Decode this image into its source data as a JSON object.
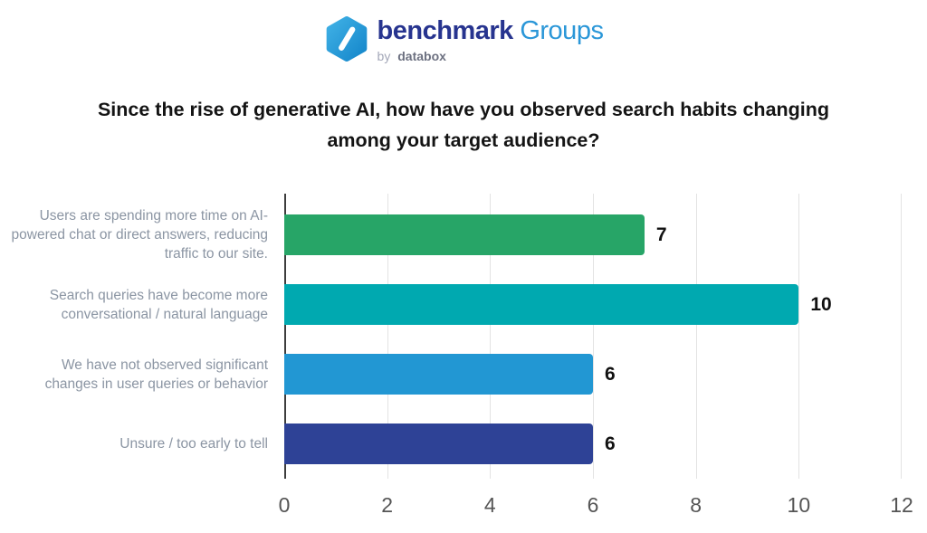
{
  "logo": {
    "brand_bold": "benchmark",
    "brand_light": "Groups",
    "byline_prefix": "by",
    "byline_brand": "databox"
  },
  "title": "Since the rise of generative AI, how have you observed search habits changing among your target audience?",
  "chart_data": {
    "type": "bar",
    "orientation": "horizontal",
    "title": "Since the rise of generative AI, how have you observed search habits changing among your target audience?",
    "categories": [
      "Users are spending more time on AI-powered chat or direct answers, reducing traffic to our site.",
      "Search queries have become more conversational / natural language",
      "We have not observed significant changes in user queries or behavior",
      "Unsure / too early to tell"
    ],
    "values": [
      7,
      10,
      6,
      6
    ],
    "bar_colors": [
      "#27a567",
      "#00a9b0",
      "#2297d3",
      "#2e4296"
    ],
    "xlim": [
      0,
      12
    ],
    "xticks": [
      0,
      2,
      4,
      6,
      8,
      10,
      12
    ],
    "grid": "vertical-gridlines-on",
    "legend": "none",
    "value_label_color": "#111111",
    "category_label_color": "#8b95a3",
    "axis_tick_color": "#555555",
    "gridline_color": "#e3e3e3",
    "axis_line_color": "#3d3d3d"
  }
}
